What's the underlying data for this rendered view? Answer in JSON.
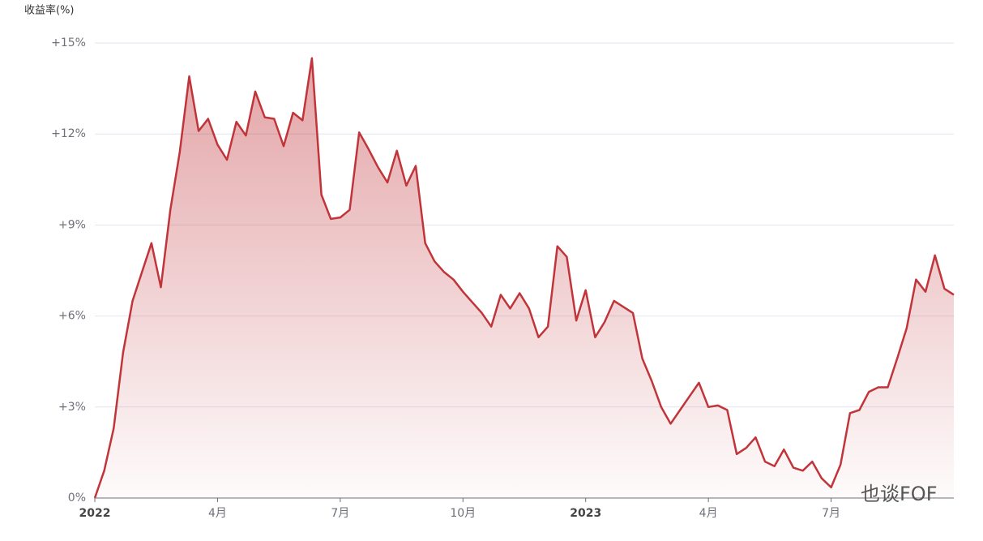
{
  "chart_data": {
    "type": "area",
    "y_label": "收益率(%)",
    "watermark": "也谈FOF",
    "color": "#c0343a",
    "grid": true,
    "ylim": [
      0,
      15
    ],
    "yticks": [
      {
        "value": 0,
        "label": "0%"
      },
      {
        "value": 3,
        "label": "+3%"
      },
      {
        "value": 6,
        "label": "+6%"
      },
      {
        "value": 9,
        "label": "+9%"
      },
      {
        "value": 12,
        "label": "+12%"
      },
      {
        "value": 15,
        "label": "+15%"
      }
    ],
    "categories": [
      "2022",
      null,
      null,
      null,
      null,
      null,
      null,
      null,
      null,
      null,
      null,
      null,
      null,
      "4月",
      null,
      null,
      null,
      null,
      null,
      null,
      null,
      null,
      null,
      null,
      null,
      null,
      "7月",
      null,
      null,
      null,
      null,
      null,
      null,
      null,
      null,
      null,
      null,
      null,
      null,
      "10月",
      null,
      null,
      null,
      null,
      null,
      null,
      null,
      null,
      null,
      null,
      null,
      null,
      "2023",
      null,
      null,
      null,
      null,
      null,
      null,
      null,
      null,
      null,
      null,
      null,
      null,
      "4月",
      null,
      null,
      null,
      null,
      null,
      null,
      null,
      null,
      null,
      null,
      null,
      null,
      "7月",
      null,
      null,
      null,
      null,
      null,
      null,
      null,
      null,
      null,
      null,
      null,
      null,
      null
    ],
    "values": [
      0,
      0.9,
      2.3,
      4.8,
      6.5,
      7.45,
      8.4,
      6.95,
      9.5,
      11.4,
      13.9,
      12.1,
      12.5,
      11.65,
      11.15,
      12.4,
      11.95,
      13.4,
      12.55,
      12.5,
      11.6,
      12.7,
      12.45,
      14.5,
      10.0,
      9.2,
      9.25,
      9.5,
      12.05,
      11.5,
      10.9,
      10.4,
      11.45,
      10.3,
      10.95,
      8.4,
      7.8,
      7.45,
      7.2,
      6.8,
      6.45,
      6.1,
      5.65,
      6.7,
      6.25,
      6.75,
      6.25,
      5.3,
      5.65,
      8.3,
      7.95,
      5.85,
      6.85,
      5.3,
      5.8,
      6.5,
      6.3,
      6.1,
      4.6,
      3.85,
      3.0,
      2.45,
      2.9,
      3.35,
      3.8,
      3.0,
      3.05,
      2.9,
      1.45,
      1.65,
      2.0,
      1.2,
      1.05,
      1.6,
      1.0,
      0.9,
      1.2,
      0.65,
      0.35,
      1.1,
      2.8,
      2.9,
      3.5,
      3.65,
      3.65,
      4.6,
      5.6,
      7.2,
      6.8,
      8.0,
      6.9,
      6.7
    ]
  }
}
